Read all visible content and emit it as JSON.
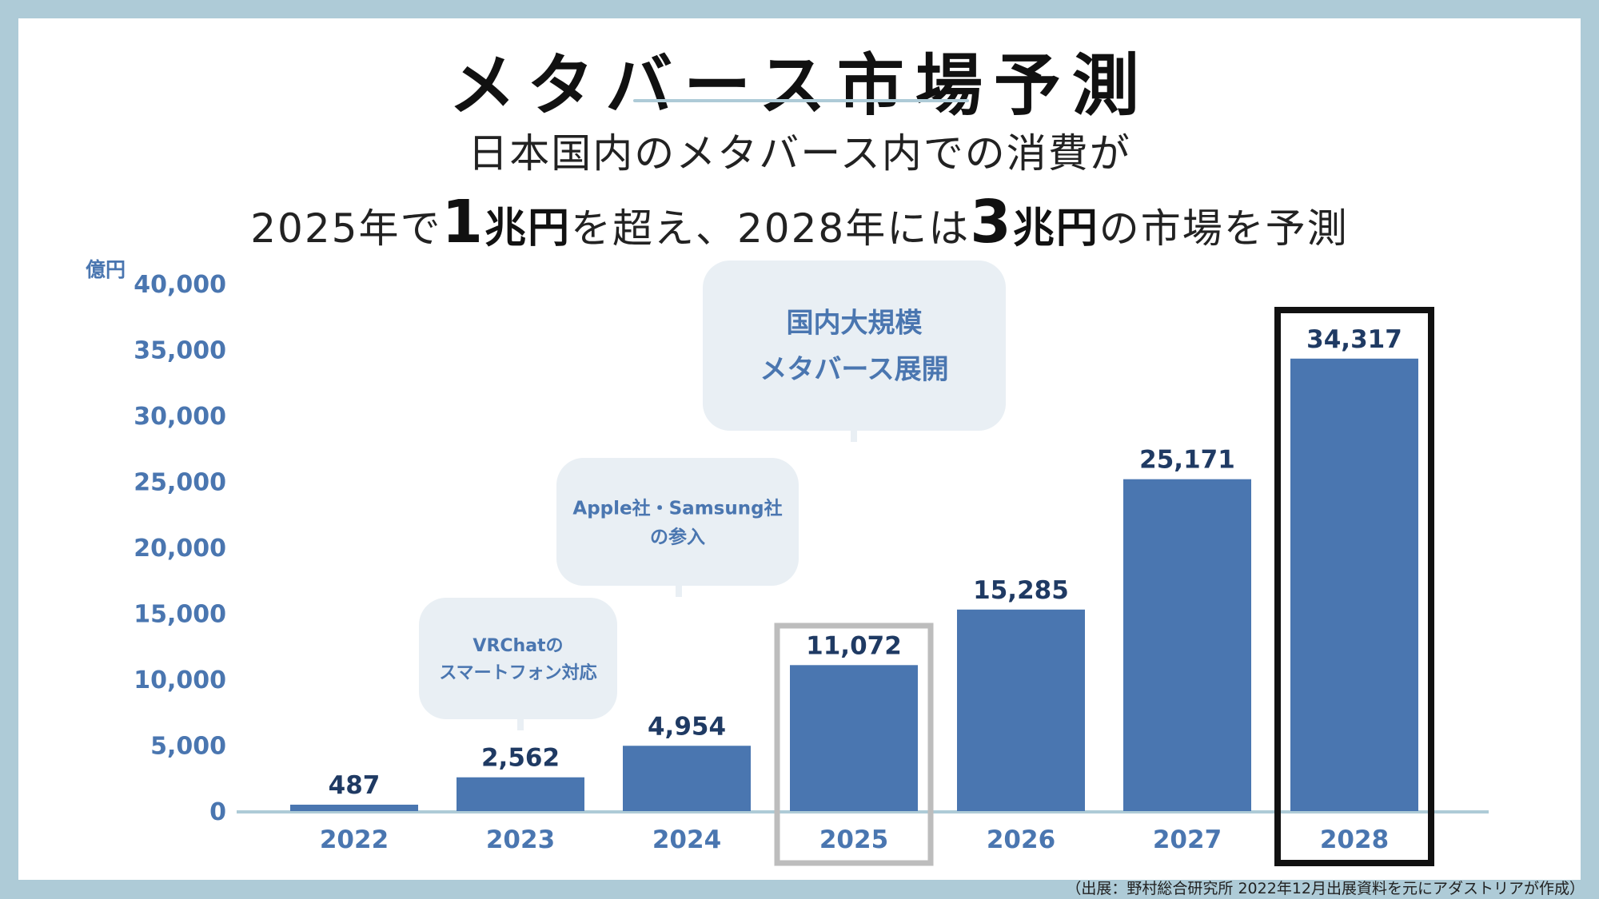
{
  "header": {
    "title": "メタバース市場予測",
    "subtitle_line1": "日本国内のメタバース内での消費が",
    "subtitle_line2_parts": [
      "2025年で",
      "1",
      "兆円",
      "を超え、2028年には",
      "3",
      "兆円",
      "の市場を予測"
    ]
  },
  "colors": {
    "bar": "#4a76b0",
    "axis_text": "#4a76b0",
    "label_text": "#1f3a63",
    "bubble": "#e9eff4",
    "highlight_2025": "#bdbdbd",
    "highlight_2028": "#111111",
    "background": "#aecbd7"
  },
  "chart_data": {
    "type": "bar",
    "categories": [
      "2022",
      "2023",
      "2024",
      "2025",
      "2026",
      "2027",
      "2028"
    ],
    "values": [
      487,
      2562,
      4954,
      11072,
      15285,
      25171,
      34317
    ],
    "value_labels": [
      "487",
      "2,562",
      "4,954",
      "11,072",
      "15,285",
      "25,171",
      "34,317"
    ],
    "ylabel": "億円",
    "ylim": [
      0,
      40000
    ],
    "yticks": [
      0,
      5000,
      10000,
      15000,
      20000,
      25000,
      30000,
      35000,
      40000
    ],
    "ytick_labels": [
      "0",
      "5,000",
      "10,000",
      "15,000",
      "20,000",
      "25,000",
      "30,000",
      "35,000",
      "40,000"
    ],
    "grid": false,
    "highlighted": [
      "2025",
      "2028"
    ],
    "annotations": [
      {
        "category": "2023",
        "lines": [
          "VRChatの",
          "スマートフォン対応"
        ]
      },
      {
        "category": "2024",
        "lines": [
          "Apple社・Samsung社",
          "の参入"
        ]
      },
      {
        "category": "2025",
        "lines": [
          "国内大規模",
          "メタバース展開"
        ]
      }
    ]
  },
  "footer": {
    "source": "（出展：野村総合研究所 2022年12月出展資料を元にアダストリアが作成）"
  }
}
